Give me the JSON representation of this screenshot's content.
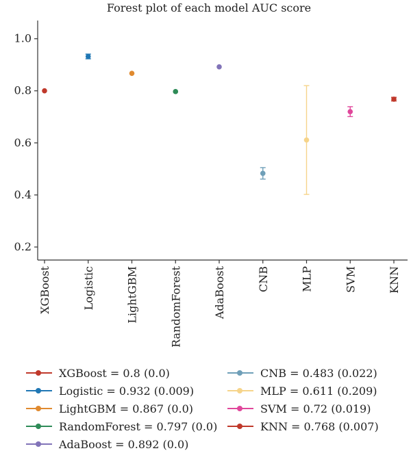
{
  "chart_data": {
    "type": "scatter",
    "title": "Forest plot of each model AUC score",
    "xlabel": "",
    "ylabel": "",
    "ylim": [
      0.15,
      1.07
    ],
    "yticks": [
      0.2,
      0.4,
      0.6,
      0.8,
      1.0
    ],
    "ytick_labels": [
      "0.2",
      "0.4",
      "0.6",
      "0.8",
      "1.0"
    ],
    "grid": false,
    "legend_placement": "bottom",
    "categories": [
      "XGBoost",
      "Logistic",
      "LightGBM",
      "RandomForest",
      "AdaBoost",
      "CNB",
      "MLP",
      "SVM",
      "KNN"
    ],
    "series": [
      {
        "name": "XGBoost",
        "value": 0.8,
        "error": 0.0,
        "color": "#c0392b"
      },
      {
        "name": "Logistic",
        "value": 0.932,
        "error": 0.009,
        "color": "#1f77b4"
      },
      {
        "name": "LightGBM",
        "value": 0.867,
        "error": 0.0,
        "color": "#e08a2f"
      },
      {
        "name": "RandomForest",
        "value": 0.797,
        "error": 0.0,
        "color": "#2e8b57"
      },
      {
        "name": "AdaBoost",
        "value": 0.892,
        "error": 0.0,
        "color": "#8173b8"
      },
      {
        "name": "CNB",
        "value": 0.483,
        "error": 0.022,
        "color": "#6f9fb8"
      },
      {
        "name": "MLP",
        "value": 0.611,
        "error": 0.209,
        "color": "#f6d48a"
      },
      {
        "name": "SVM",
        "value": 0.72,
        "error": 0.019,
        "color": "#e0479b"
      },
      {
        "name": "KNN",
        "value": 0.768,
        "error": 0.007,
        "color": "#c0392b"
      }
    ],
    "legend_labels": [
      "XGBoost = 0.8 (0.0)",
      "Logistic = 0.932 (0.009)",
      "LightGBM = 0.867 (0.0)",
      "RandomForest = 0.797 (0.0)",
      "AdaBoost = 0.892 (0.0)",
      "CNB = 0.483 (0.022)",
      "MLP = 0.611 (0.209)",
      "SVM = 0.72 (0.019)",
      "KNN = 0.768 (0.007)"
    ]
  }
}
